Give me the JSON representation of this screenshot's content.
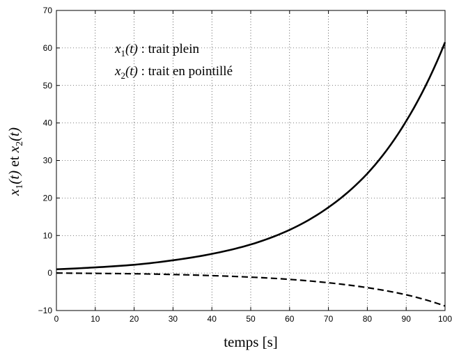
{
  "chart_data": {
    "type": "line",
    "title": "",
    "xlabel": "temps [s]",
    "ylabel": {
      "v1": "x",
      "s1": "1",
      "p1": "(t)",
      "mid": "et",
      "v2": "x",
      "s2": "2",
      "p2": "(t)"
    },
    "xlim": [
      0,
      100
    ],
    "ylim": [
      -10,
      70
    ],
    "xticks": [
      0,
      10,
      20,
      30,
      40,
      50,
      60,
      70,
      80,
      90,
      100
    ],
    "yticks": [
      -10,
      0,
      10,
      20,
      30,
      40,
      50,
      60,
      70
    ],
    "grid": true,
    "annotations": [
      {
        "var": "x",
        "sub": "1",
        "paren": "(t)",
        "text": " : trait plein"
      },
      {
        "var": "x",
        "sub": "2",
        "paren": "(t)",
        "text": " : trait en pointillé"
      }
    ],
    "series": [
      {
        "style": "solid",
        "x": [
          0,
          10,
          20,
          30,
          40,
          50,
          60,
          70,
          80,
          90,
          100
        ],
        "y": [
          1.0,
          1.5,
          2.2,
          3.4,
          5.1,
          7.6,
          11.5,
          17.5,
          26.5,
          40.5,
          61.5
        ]
      },
      {
        "style": "dashed",
        "x": [
          0,
          10,
          20,
          30,
          40,
          50,
          60,
          70,
          80,
          90,
          100
        ],
        "y": [
          0.0,
          -0.1,
          -0.2,
          -0.4,
          -0.7,
          -1.1,
          -1.7,
          -2.6,
          -3.9,
          -5.8,
          -8.8
        ]
      }
    ]
  }
}
